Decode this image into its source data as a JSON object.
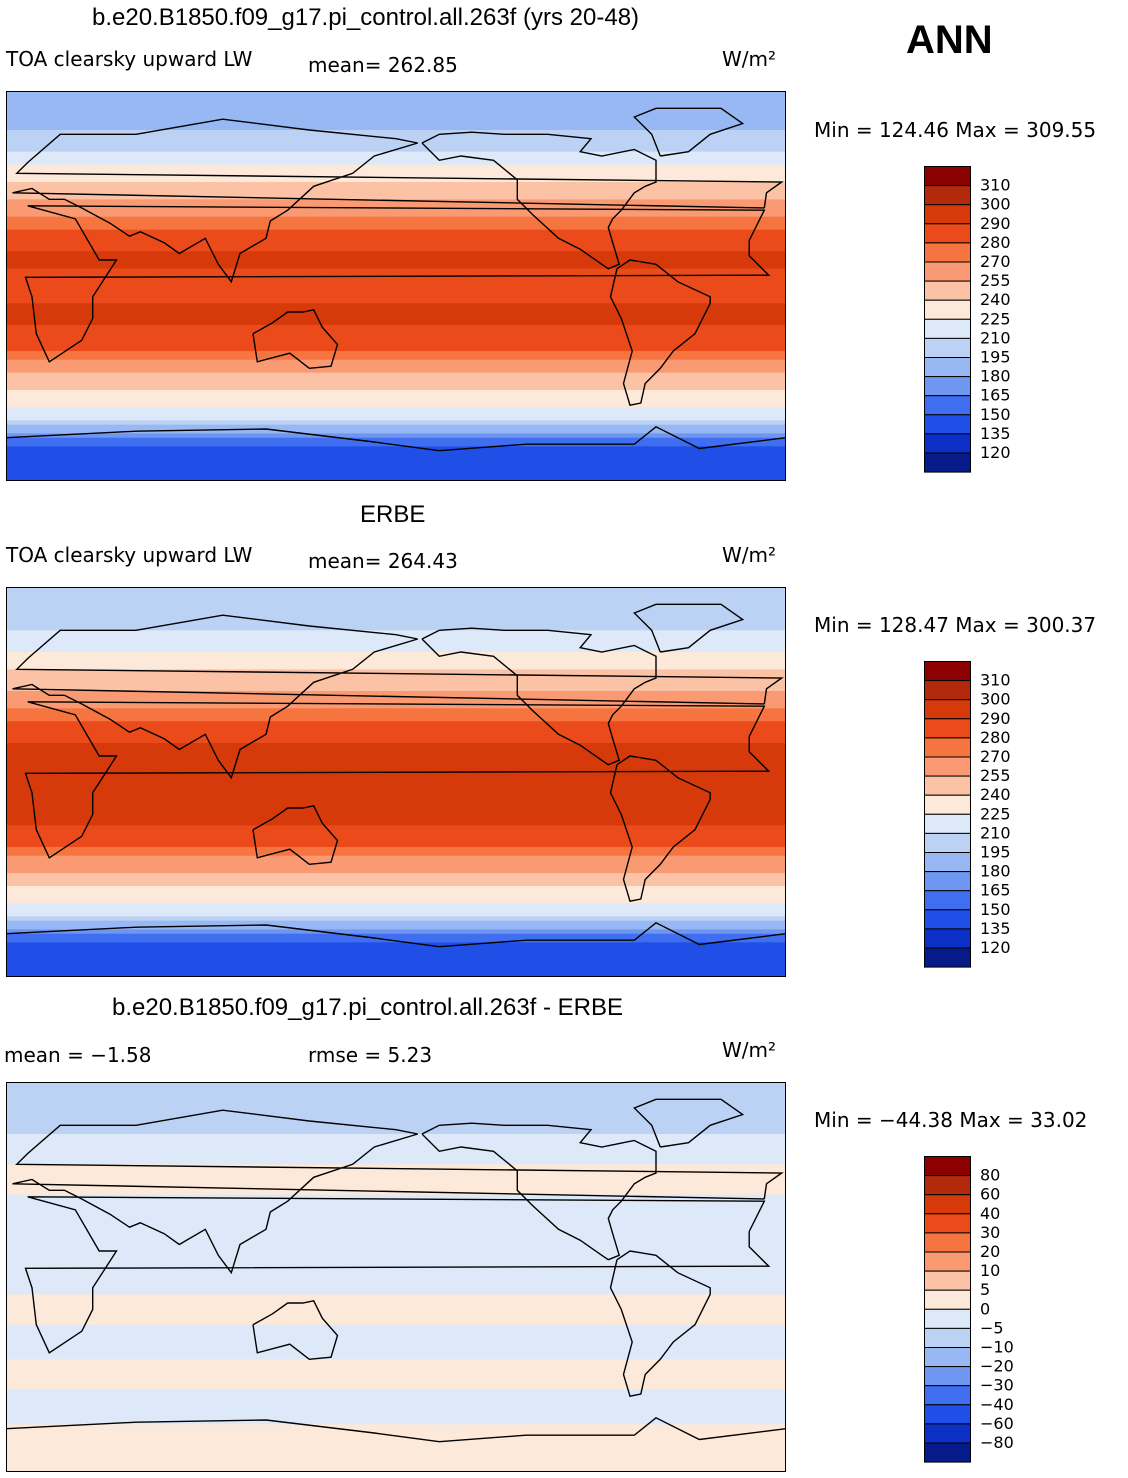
{
  "season": "ANN",
  "panels": [
    {
      "title": "b.e20.B1850.f09_g17.pi_control.all.263f (yrs 20-48)",
      "variable": "TOA clearsky upward LW",
      "stat_left": "mean= 262.85",
      "stat_right": "",
      "units": "W/m²",
      "minmax": "Min = 124.46 Max = 309.55",
      "colorbar_labels": [
        "310",
        "300",
        "290",
        "280",
        "270",
        "255",
        "240",
        "225",
        "210",
        "195",
        "180",
        "165",
        "150",
        "135",
        "120"
      ]
    },
    {
      "title": "ERBE",
      "variable": "TOA clearsky upward LW",
      "stat_left": "mean= 264.43",
      "stat_right": "",
      "units": "W/m²",
      "minmax": "Min = 128.47 Max = 300.37",
      "colorbar_labels": [
        "310",
        "300",
        "290",
        "280",
        "270",
        "255",
        "240",
        "225",
        "210",
        "195",
        "180",
        "165",
        "150",
        "135",
        "120"
      ]
    },
    {
      "title": "b.e20.B1850.f09_g17.pi_control.all.263f - ERBE",
      "variable": "mean =   −1.58",
      "stat_left": "",
      "stat_right": "rmse =    5.23",
      "units": "W/m²",
      "minmax": "Min = −44.38 Max =  33.02",
      "colorbar_labels": [
        "80",
        "60",
        "40",
        "30",
        "20",
        "10",
        "5",
        "0",
        "−5",
        "−10",
        "−20",
        "−30",
        "−40",
        "−60",
        "−80"
      ]
    }
  ],
  "colors": {
    "abs_scale": [
      "#8b0000",
      "#b22a0b",
      "#d63a0a",
      "#eb4a1a",
      "#f5743f",
      "#f99a73",
      "#fcc2a5",
      "#fde9d9",
      "#dde9f8",
      "#bcd2f5",
      "#98b8f3",
      "#6f97f2",
      "#3f6ff0",
      "#1f4fe6",
      "#0c2fc6",
      "#061a8a"
    ],
    "diff_scale": [
      "#8b0000",
      "#b22a0b",
      "#d63a0a",
      "#eb4a1a",
      "#f5743f",
      "#f99a73",
      "#fcc2a5",
      "#fde9d9",
      "#dde9f8",
      "#bcd2f5",
      "#98b8f3",
      "#6f97f2",
      "#3f6ff0",
      "#1f4fe6",
      "#0c2fc6",
      "#061a8a"
    ]
  },
  "chart_data": [
    {
      "type": "heatmap",
      "title": "b.e20.B1850.f09_g17.pi_control.all.263f (yrs 20-48)",
      "variable": "TOA clearsky upward LW",
      "units": "W/m2",
      "mean": 262.85,
      "min": 124.46,
      "max": 309.55,
      "contour_levels": [
        120,
        135,
        150,
        165,
        180,
        195,
        210,
        225,
        240,
        255,
        270,
        280,
        290,
        300,
        310
      ],
      "lat_band_values": [
        {
          "lat": 80,
          "value": 180
        },
        {
          "lat": 60,
          "value": 215
        },
        {
          "lat": 45,
          "value": 245
        },
        {
          "lat": 30,
          "value": 275
        },
        {
          "lat": 15,
          "value": 292
        },
        {
          "lat": 0,
          "value": 288
        },
        {
          "lat": -15,
          "value": 292
        },
        {
          "lat": -30,
          "value": 280
        },
        {
          "lat": -45,
          "value": 245
        },
        {
          "lat": -60,
          "value": 215
        },
        {
          "lat": -75,
          "value": 140
        }
      ]
    },
    {
      "type": "heatmap",
      "title": "ERBE",
      "variable": "TOA clearsky upward LW",
      "units": "W/m2",
      "mean": 264.43,
      "min": 128.47,
      "max": 300.37,
      "contour_levels": [
        120,
        135,
        150,
        165,
        180,
        195,
        210,
        225,
        240,
        255,
        270,
        280,
        290,
        300,
        310
      ],
      "lat_band_values": [
        {
          "lat": 80,
          "value": 195
        },
        {
          "lat": 60,
          "value": 225
        },
        {
          "lat": 45,
          "value": 250
        },
        {
          "lat": 30,
          "value": 278
        },
        {
          "lat": 15,
          "value": 294
        },
        {
          "lat": 0,
          "value": 290
        },
        {
          "lat": -15,
          "value": 294
        },
        {
          "lat": -30,
          "value": 280
        },
        {
          "lat": -45,
          "value": 248
        },
        {
          "lat": -60,
          "value": 215
        },
        {
          "lat": -75,
          "value": 140
        }
      ]
    },
    {
      "type": "heatmap",
      "title": "b.e20.B1850.f09_g17.pi_control.all.263f - ERBE",
      "variable": "difference",
      "units": "W/m2",
      "mean": -1.58,
      "rmse": 5.23,
      "min": -44.38,
      "max": 33.02,
      "contour_levels": [
        -80,
        -60,
        -40,
        -30,
        -20,
        -10,
        -5,
        0,
        5,
        10,
        20,
        30,
        40,
        60,
        80
      ],
      "lat_band_values": [
        {
          "lat": 80,
          "value": -10
        },
        {
          "lat": 60,
          "value": -3
        },
        {
          "lat": 45,
          "value": 2
        },
        {
          "lat": 30,
          "value": -3
        },
        {
          "lat": 15,
          "value": -2
        },
        {
          "lat": 0,
          "value": -3
        },
        {
          "lat": -15,
          "value": 2
        },
        {
          "lat": -30,
          "value": -3
        },
        {
          "lat": -45,
          "value": 2
        },
        {
          "lat": -60,
          "value": -3
        },
        {
          "lat": -75,
          "value": 3
        }
      ]
    }
  ]
}
